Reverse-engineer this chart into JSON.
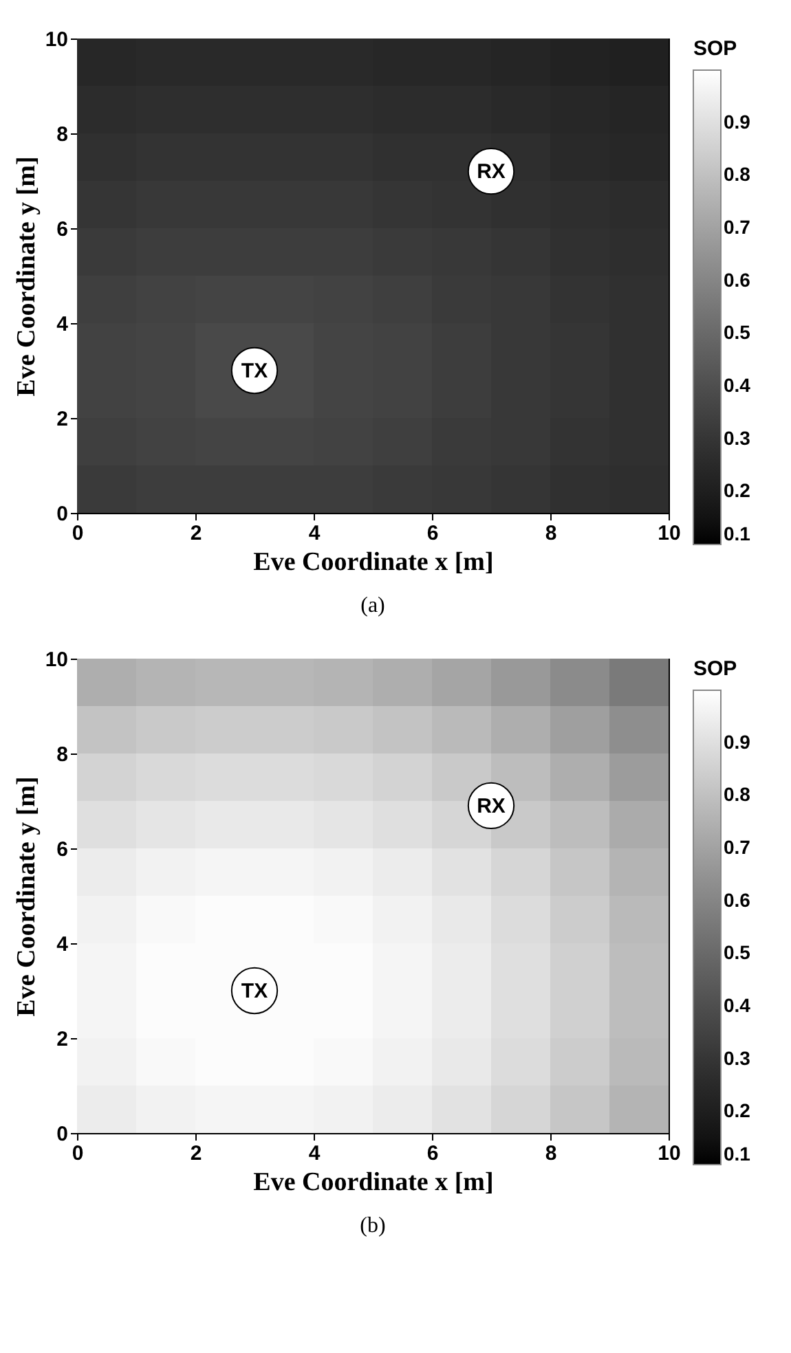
{
  "chart_data": [
    {
      "type": "heatmap",
      "xlabel": "Eve Coordinate x [m]",
      "ylabel": "Eve Coordinate y [m]",
      "clabel": "SOP",
      "x": [
        0.5,
        1.5,
        2.5,
        3.5,
        4.5,
        5.5,
        6.5,
        7.5,
        8.5,
        9.5
      ],
      "y": [
        9.5,
        8.5,
        7.5,
        6.5,
        5.5,
        4.5,
        3.5,
        2.5,
        1.5,
        0.5
      ],
      "xlim": [
        0,
        10
      ],
      "xticks": [
        0,
        2,
        4,
        6,
        8,
        10
      ],
      "ylim": [
        0,
        10
      ],
      "yticks": [
        0,
        2,
        4,
        6,
        8,
        10
      ],
      "clim": [
        0.1,
        1
      ],
      "cticks": [
        0.1,
        0.2,
        0.3,
        0.4,
        0.5,
        0.6,
        0.7,
        0.8,
        0.9
      ],
      "cells": [
        [
          0.24,
          0.25,
          0.25,
          0.25,
          0.25,
          0.24,
          0.24,
          0.23,
          0.22,
          0.21
        ],
        [
          0.26,
          0.27,
          0.27,
          0.27,
          0.27,
          0.26,
          0.26,
          0.25,
          0.24,
          0.23
        ],
        [
          0.28,
          0.29,
          0.29,
          0.29,
          0.29,
          0.28,
          0.28,
          0.27,
          0.25,
          0.24
        ],
        [
          0.3,
          0.31,
          0.31,
          0.31,
          0.31,
          0.3,
          0.29,
          0.28,
          0.27,
          0.26
        ],
        [
          0.32,
          0.33,
          0.33,
          0.33,
          0.33,
          0.32,
          0.31,
          0.3,
          0.28,
          0.27
        ],
        [
          0.34,
          0.35,
          0.36,
          0.36,
          0.35,
          0.34,
          0.32,
          0.31,
          0.29,
          0.28
        ],
        [
          0.35,
          0.36,
          0.38,
          0.38,
          0.36,
          0.35,
          0.33,
          0.31,
          0.3,
          0.28
        ],
        [
          0.35,
          0.36,
          0.38,
          0.38,
          0.36,
          0.35,
          0.33,
          0.31,
          0.3,
          0.28
        ],
        [
          0.34,
          0.35,
          0.36,
          0.36,
          0.35,
          0.34,
          0.32,
          0.31,
          0.29,
          0.28
        ],
        [
          0.32,
          0.33,
          0.33,
          0.33,
          0.33,
          0.32,
          0.31,
          0.3,
          0.28,
          0.27
        ]
      ],
      "annotations": [
        "TX",
        "RX",
        "(a)"
      ]
    },
    {
      "type": "heatmap",
      "xlabel": "Eve Coordinate x [m]",
      "ylabel": "Eve Coordinate y [m]",
      "clabel": "SOP",
      "x": [
        0.5,
        1.5,
        2.5,
        3.5,
        4.5,
        5.5,
        6.5,
        7.5,
        8.5,
        9.5
      ],
      "y": [
        9.5,
        8.5,
        7.5,
        6.5,
        5.5,
        4.5,
        3.5,
        2.5,
        1.5,
        0.5
      ],
      "xlim": [
        0,
        10
      ],
      "xticks": [
        0,
        2,
        4,
        6,
        8,
        10
      ],
      "ylim": [
        0,
        10
      ],
      "yticks": [
        0,
        2,
        4,
        6,
        8,
        10
      ],
      "clim": [
        0.1,
        1
      ],
      "cticks": [
        0.1,
        0.2,
        0.3,
        0.4,
        0.5,
        0.6,
        0.7,
        0.8,
        0.9
      ],
      "cells": [
        [
          0.74,
          0.76,
          0.77,
          0.77,
          0.76,
          0.74,
          0.71,
          0.67,
          0.62,
          0.56
        ],
        [
          0.81,
          0.83,
          0.84,
          0.84,
          0.83,
          0.81,
          0.78,
          0.74,
          0.69,
          0.63
        ],
        [
          0.86,
          0.88,
          0.89,
          0.89,
          0.88,
          0.86,
          0.83,
          0.79,
          0.74,
          0.68
        ],
        [
          0.9,
          0.92,
          0.93,
          0.93,
          0.92,
          0.9,
          0.87,
          0.83,
          0.79,
          0.73
        ],
        [
          0.94,
          0.96,
          0.97,
          0.97,
          0.96,
          0.94,
          0.91,
          0.87,
          0.82,
          0.76
        ],
        [
          0.96,
          0.98,
          0.99,
          0.99,
          0.98,
          0.96,
          0.93,
          0.89,
          0.84,
          0.78
        ],
        [
          0.97,
          0.99,
          0.99,
          0.99,
          0.99,
          0.97,
          0.94,
          0.9,
          0.85,
          0.79
        ],
        [
          0.97,
          0.99,
          0.99,
          0.99,
          0.99,
          0.97,
          0.94,
          0.9,
          0.85,
          0.79
        ],
        [
          0.96,
          0.98,
          0.99,
          0.99,
          0.98,
          0.96,
          0.93,
          0.89,
          0.84,
          0.78
        ],
        [
          0.94,
          0.96,
          0.97,
          0.97,
          0.96,
          0.94,
          0.91,
          0.87,
          0.82,
          0.76
        ]
      ],
      "annotations": [
        "TX",
        "RX",
        "(b)"
      ]
    }
  ]
}
